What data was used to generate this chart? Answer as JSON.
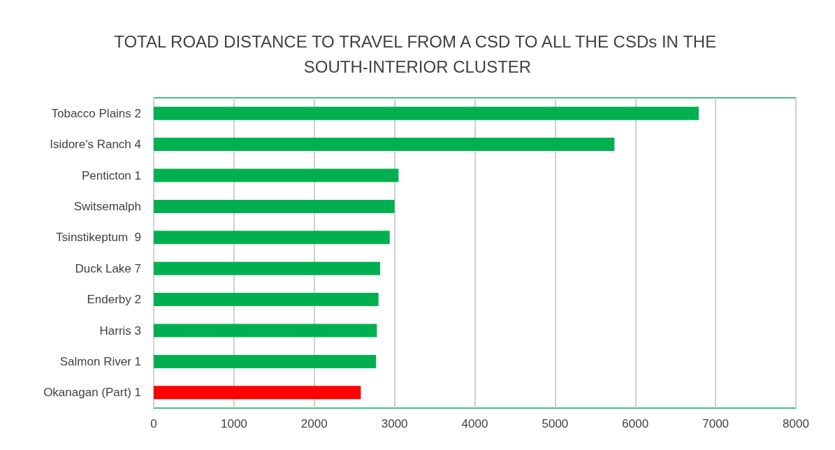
{
  "chart_data": {
    "type": "bar",
    "orientation": "horizontal",
    "title": "TOTAL ROAD DISTANCE TO TRAVEL FROM A CSD TO ALL THE CSDs IN THE SOUTH-INTERIOR CLUSTER",
    "categories": [
      "Tobacco Plains 2",
      "Isidore's Ranch 4",
      "Penticton 1",
      "Switsemalph",
      "Tsinstikeptum  9",
      "Duck Lake 7",
      "Enderby 2",
      "Harris 3",
      "Salmon River 1",
      "Okanagan (Part) 1"
    ],
    "values": [
      6790,
      5740,
      3050,
      3000,
      2940,
      2820,
      2800,
      2780,
      2770,
      2580
    ],
    "colors": [
      "#00b050",
      "#00b050",
      "#00b050",
      "#00b050",
      "#00b050",
      "#00b050",
      "#00b050",
      "#00b050",
      "#00b050",
      "#ff0000"
    ],
    "xlim": [
      0,
      8000
    ],
    "xticks": [
      0,
      1000,
      2000,
      3000,
      4000,
      5000,
      6000,
      7000,
      8000
    ],
    "grid": "x"
  }
}
